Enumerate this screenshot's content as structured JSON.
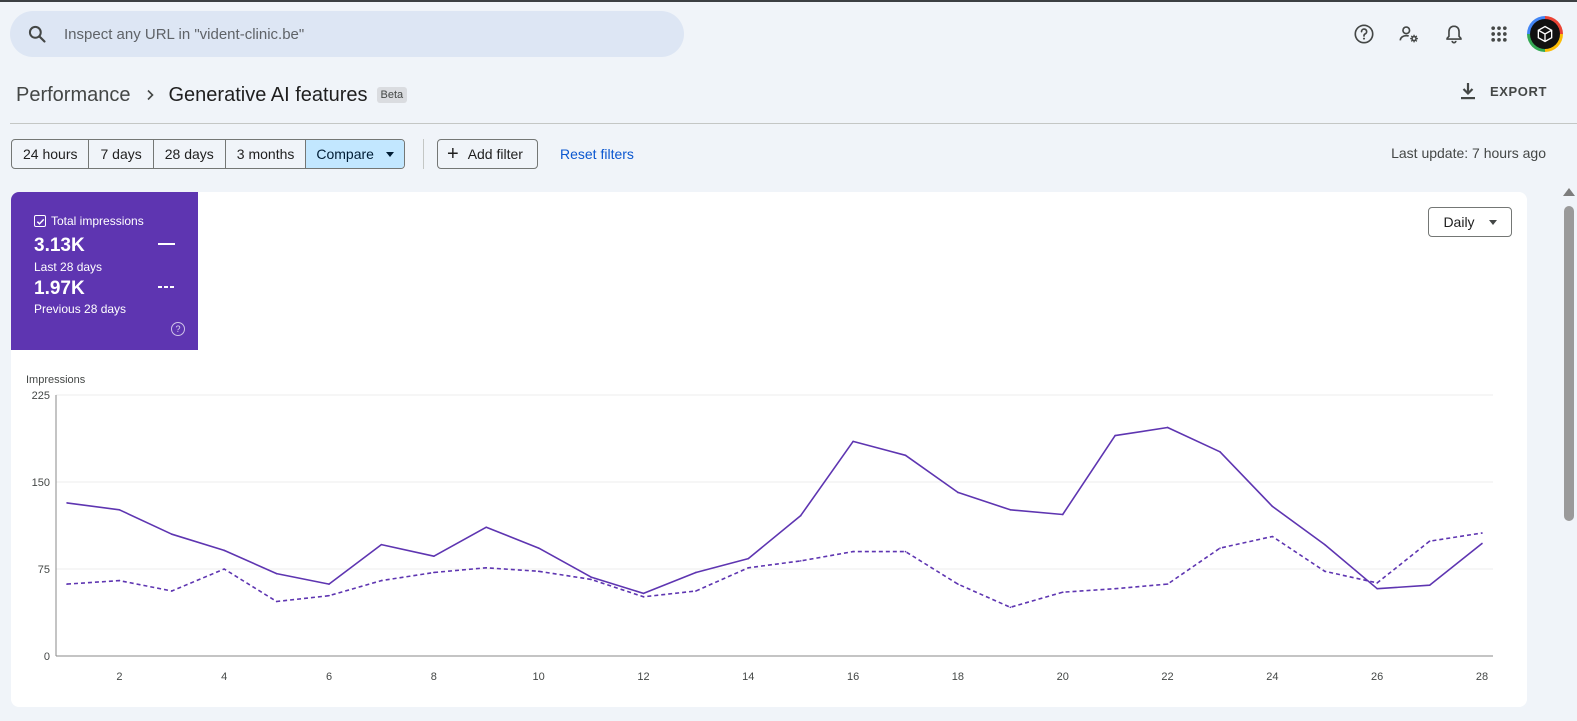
{
  "search": {
    "placeholder": "Inspect any URL in \"vident-clinic.be\"",
    "icon": "search-icon"
  },
  "header_icons": [
    "help-icon",
    "manage-users-icon",
    "notifications-icon",
    "apps-icon"
  ],
  "breadcrumb": {
    "parent": "Performance",
    "current": "Generative AI features",
    "badge": "Beta"
  },
  "export_label": "EXPORT",
  "ranges": [
    {
      "label": "24 hours",
      "active": false
    },
    {
      "label": "7 days",
      "active": false
    },
    {
      "label": "28 days",
      "active": false
    },
    {
      "label": "3 months",
      "active": false
    },
    {
      "label": "Compare",
      "active": true
    }
  ],
  "add_filter_label": "Add filter",
  "reset_filters_label": "Reset filters",
  "last_update": "Last update: 7 hours ago",
  "metric": {
    "title": "Total impressions",
    "checked": true,
    "current_value": "3.13K",
    "current_label": "Last 28 days",
    "previous_value": "1.97K",
    "previous_label": "Previous 28 days",
    "color": "#5e35b1",
    "help_glyph": "?"
  },
  "granularity": "Daily",
  "chart_data": {
    "type": "line",
    "ylabel": "Impressions",
    "ylim": [
      0,
      225
    ],
    "yticks": [
      0,
      75,
      150,
      225
    ],
    "x": [
      1,
      2,
      3,
      4,
      5,
      6,
      7,
      8,
      9,
      10,
      11,
      12,
      13,
      14,
      15,
      16,
      17,
      18,
      19,
      20,
      21,
      22,
      23,
      24,
      25,
      26,
      27,
      28
    ],
    "xticks": [
      2,
      4,
      6,
      8,
      10,
      12,
      14,
      16,
      18,
      20,
      22,
      24,
      26,
      28
    ],
    "grid": true,
    "series": [
      {
        "name": "Last 28 days",
        "style": "solid",
        "color": "#5e35b1",
        "values": [
          132,
          126,
          105,
          91,
          71,
          62,
          96,
          86,
          111,
          93,
          68,
          54,
          72,
          84,
          121,
          185,
          173,
          141,
          126,
          122,
          190,
          197,
          176,
          129,
          96,
          58,
          61,
          97
        ]
      },
      {
        "name": "Previous 28 days",
        "style": "dashed",
        "color": "#5e35b1",
        "values": [
          62,
          65,
          56,
          75,
          47,
          52,
          65,
          72,
          76,
          73,
          66,
          51,
          56,
          76,
          82,
          90,
          90,
          62,
          42,
          55,
          58,
          62,
          93,
          103,
          73,
          63,
          99,
          106
        ]
      }
    ]
  }
}
